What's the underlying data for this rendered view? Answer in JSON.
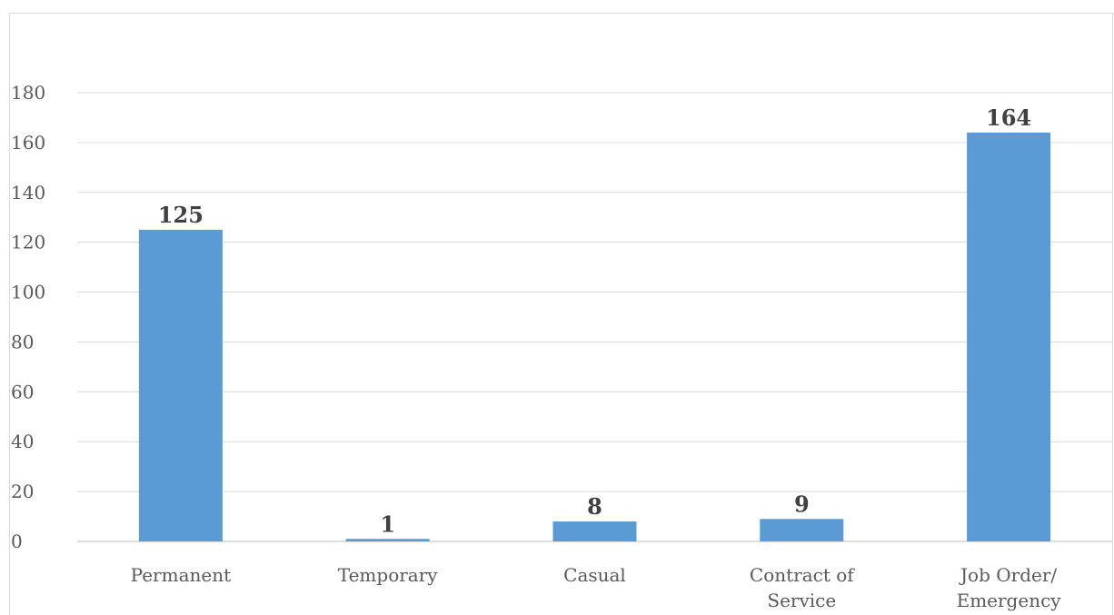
{
  "chart_data": {
    "type": "bar",
    "categories": [
      [
        "Permanent"
      ],
      [
        "Temporary"
      ],
      [
        "Casual"
      ],
      [
        "Contract of",
        "Service"
      ],
      [
        "Job Order/",
        "Emergency"
      ]
    ],
    "values": [
      125,
      1,
      8,
      9,
      164
    ],
    "data_labels": [
      "125",
      "1",
      "8",
      "9",
      "164"
    ],
    "title": "",
    "xlabel": "",
    "ylabel": "",
    "ylim": [
      0,
      180
    ],
    "yticks": [
      0,
      20,
      40,
      60,
      80,
      100,
      120,
      140,
      160,
      180
    ],
    "grid": true,
    "legend": "none",
    "colors": {
      "bar": "#5b9bd5",
      "grid": "#d9d9d9",
      "axis": "#bfbfbf"
    }
  }
}
